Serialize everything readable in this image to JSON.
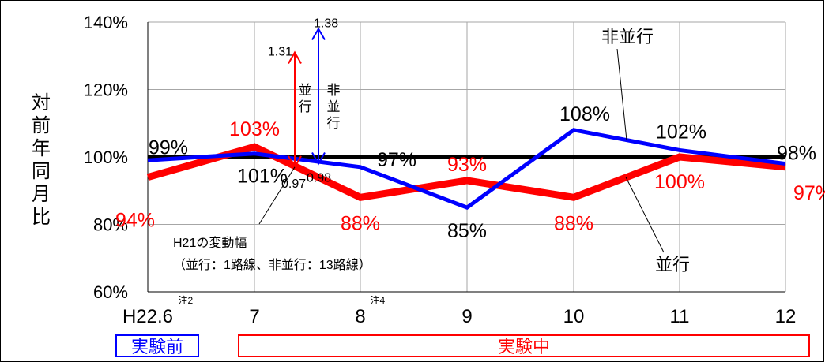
{
  "colors": {
    "red": "#ff0000",
    "blue": "#0000ff",
    "black": "#000000",
    "grid": "#a6a6a6"
  },
  "chart_data": {
    "type": "line",
    "ylabel": "対前年同月比",
    "ylim": [
      60,
      140
    ],
    "yticks": [
      "60%",
      "80%",
      "100%",
      "120%",
      "140%"
    ],
    "ytick_values": [
      60,
      80,
      100,
      120,
      140
    ],
    "categories": [
      "H22.6",
      "7",
      "8",
      "9",
      "10",
      "11",
      "12"
    ],
    "category_notes": {
      "H22.6": "注2",
      "8": "注4"
    },
    "grid": true,
    "baseline": 100,
    "series": [
      {
        "name": "並行",
        "color": "red",
        "values": [
          94,
          103,
          88,
          93,
          88,
          100,
          97
        ],
        "labels": [
          "94%",
          "103%",
          "88%",
          "93%",
          "88%",
          "100%",
          "97%"
        ]
      },
      {
        "name": "非並行",
        "color": "blue",
        "values": [
          99,
          101,
          97,
          85,
          108,
          102,
          98
        ],
        "labels": [
          "99%",
          "101%",
          "97%",
          "85%",
          "108%",
          "102%",
          "98%"
        ]
      }
    ],
    "ranges": [
      {
        "label": "並行",
        "color": "red",
        "min": 0.97,
        "max": 1.31,
        "min_label": "0.97",
        "max_label": "1.31"
      },
      {
        "label": "非並行",
        "color": "blue",
        "min": 0.98,
        "max": 1.38,
        "min_label": "0.98",
        "max_label": "1.38"
      }
    ],
    "annotations": {
      "range_note_line1": "H21の変動幅",
      "range_note_line2": "（並行：1路線、非並行：13路線）",
      "callout_nonparallel": "非並行",
      "callout_parallel": "並行"
    },
    "periods": [
      {
        "label": "実験前",
        "color": "blue"
      },
      {
        "label": "実験中",
        "color": "red"
      }
    ]
  }
}
